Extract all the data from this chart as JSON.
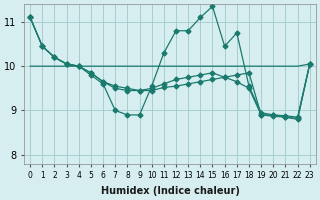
{
  "xlabel": "Humidex (Indice chaleur)",
  "ylabel": "",
  "bg_color": "#d7eef0",
  "line_color": "#1a7a6e",
  "grid_color": "#a0c8cc",
  "xlim": [
    -0.5,
    23.5
  ],
  "ylim": [
    7.8,
    11.4
  ],
  "yticks": [
    8,
    9,
    10,
    11
  ],
  "xticks": [
    0,
    1,
    2,
    3,
    4,
    5,
    6,
    7,
    8,
    9,
    10,
    11,
    12,
    13,
    14,
    15,
    16,
    17,
    18,
    19,
    20,
    21,
    22,
    23
  ],
  "series": [
    [
      11.1,
      10.45,
      10.2,
      10.05,
      10.0,
      9.8,
      9.6,
      9.0,
      8.9,
      8.9,
      9.55,
      10.3,
      10.8,
      10.8,
      11.1,
      11.35,
      10.45,
      10.75,
      9.55,
      8.95,
      8.9,
      8.85,
      8.8,
      10.05
    ],
    [
      11.1,
      10.45,
      10.2,
      10.05,
      10.0,
      9.85,
      9.65,
      9.55,
      9.5,
      9.45,
      9.45,
      9.52,
      9.55,
      9.6,
      9.65,
      9.7,
      9.75,
      9.8,
      9.85,
      8.9,
      8.9,
      8.88,
      8.85,
      10.05
    ],
    [
      10.0,
      10.0,
      10.0,
      10.0,
      10.0,
      10.0,
      10.0,
      10.0,
      10.0,
      10.0,
      10.0,
      10.0,
      10.0,
      10.0,
      10.0,
      10.0,
      10.0,
      10.0,
      10.0,
      10.0,
      10.0,
      10.0,
      10.0,
      10.05
    ],
    [
      11.1,
      10.45,
      10.2,
      10.05,
      10.0,
      9.85,
      9.65,
      9.5,
      9.45,
      9.45,
      9.5,
      9.6,
      9.7,
      9.75,
      9.8,
      9.85,
      9.75,
      9.65,
      9.5,
      8.9,
      8.87,
      8.85,
      8.82,
      10.05
    ]
  ]
}
